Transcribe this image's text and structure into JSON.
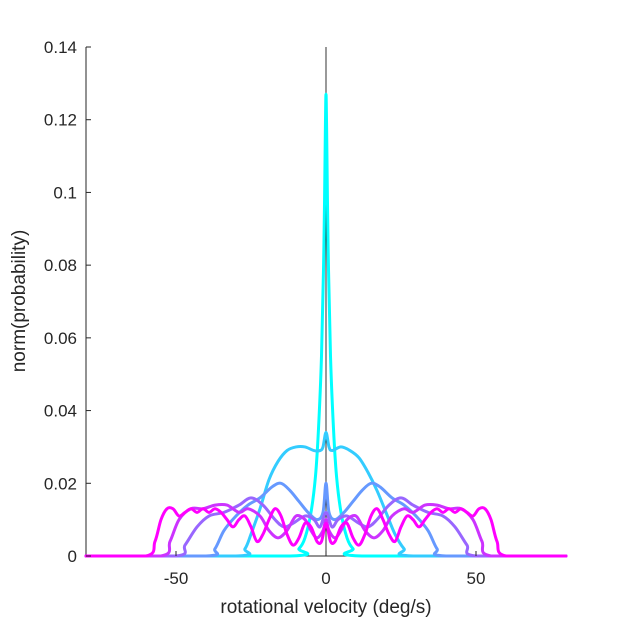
{
  "chart_data": {
    "type": "line",
    "title": "",
    "xlabel": "rotational velocity (deg/s)",
    "ylabel": "norm(probability)",
    "xlim": [
      -80,
      80
    ],
    "ylim": [
      0,
      0.14
    ],
    "xticks": [
      -50,
      0,
      50
    ],
    "xtick_labels": [
      "-50",
      "0",
      "50"
    ],
    "yticks": [
      0,
      0.02,
      0.04,
      0.06,
      0.08,
      0.1,
      0.12,
      0.14
    ],
    "ytick_labels": [
      "0",
      "0.02",
      "0.04",
      "0.06",
      "0.08",
      "0.1",
      "0.12",
      "0.14"
    ],
    "grid": false,
    "legend": "none",
    "zero_line": true,
    "series": [
      {
        "color": "#00ffff",
        "points": [
          [
            -80,
            0
          ],
          [
            -12,
            0
          ],
          [
            -9,
            0.002
          ],
          [
            -7,
            0.005
          ],
          [
            -5,
            0.012
          ],
          [
            -3.5,
            0.022
          ],
          [
            -2.5,
            0.035
          ],
          [
            -1.5,
            0.055
          ],
          [
            -0.7,
            0.085
          ],
          [
            -0.2,
            0.118
          ],
          [
            0,
            0.127
          ],
          [
            0.2,
            0.118
          ],
          [
            0.7,
            0.085
          ],
          [
            1.5,
            0.055
          ],
          [
            2.5,
            0.035
          ],
          [
            3.5,
            0.022
          ],
          [
            5,
            0.012
          ],
          [
            7,
            0.005
          ],
          [
            9,
            0.002
          ],
          [
            12,
            0
          ],
          [
            80,
            0
          ]
        ]
      },
      {
        "color": "#33ccff",
        "points": [
          [
            -80,
            0
          ],
          [
            -30,
            0
          ],
          [
            -27,
            0.002
          ],
          [
            -25,
            0.006
          ],
          [
            -22,
            0.013
          ],
          [
            -19,
            0.021
          ],
          [
            -16,
            0.026
          ],
          [
            -13,
            0.029
          ],
          [
            -10,
            0.03
          ],
          [
            -7,
            0.03
          ],
          [
            -4,
            0.029
          ],
          [
            -2,
            0.029
          ],
          [
            -1,
            0.03
          ],
          [
            0,
            0.034
          ],
          [
            1,
            0.03
          ],
          [
            2,
            0.029
          ],
          [
            5,
            0.03
          ],
          [
            8,
            0.029
          ],
          [
            11,
            0.027
          ],
          [
            14,
            0.023
          ],
          [
            17,
            0.018
          ],
          [
            20,
            0.012
          ],
          [
            23,
            0.006
          ],
          [
            26,
            0.002
          ],
          [
            29,
            0
          ],
          [
            80,
            0
          ]
        ]
      },
      {
        "color": "#6699ff",
        "points": [
          [
            -80,
            0
          ],
          [
            -40,
            0
          ],
          [
            -37,
            0.002
          ],
          [
            -34,
            0.007
          ],
          [
            -30,
            0.011
          ],
          [
            -26,
            0.014
          ],
          [
            -22,
            0.016
          ],
          [
            -18,
            0.019
          ],
          [
            -15,
            0.02
          ],
          [
            -12,
            0.018
          ],
          [
            -9,
            0.015
          ],
          [
            -6,
            0.012
          ],
          [
            -3,
            0.01
          ],
          [
            -1,
            0.012
          ],
          [
            0,
            0.02
          ],
          [
            1,
            0.012
          ],
          [
            3,
            0.01
          ],
          [
            6,
            0.012
          ],
          [
            9,
            0.015
          ],
          [
            12,
            0.018
          ],
          [
            15,
            0.02
          ],
          [
            18,
            0.019
          ],
          [
            22,
            0.016
          ],
          [
            26,
            0.014
          ],
          [
            30,
            0.011
          ],
          [
            34,
            0.007
          ],
          [
            37,
            0.002
          ],
          [
            40,
            0
          ],
          [
            80,
            0
          ]
        ]
      },
      {
        "color": "#9966ff",
        "points": [
          [
            -80,
            0
          ],
          [
            -50,
            0
          ],
          [
            -47,
            0.003
          ],
          [
            -43,
            0.008
          ],
          [
            -39,
            0.011
          ],
          [
            -34,
            0.012
          ],
          [
            -29,
            0.014
          ],
          [
            -25,
            0.016
          ],
          [
            -21,
            0.014
          ],
          [
            -17,
            0.01
          ],
          [
            -14,
            0.008
          ],
          [
            -11,
            0.009
          ],
          [
            -7,
            0.011
          ],
          [
            -4,
            0.01
          ],
          [
            -2,
            0.008
          ],
          [
            0,
            0.012
          ],
          [
            2,
            0.008
          ],
          [
            4,
            0.01
          ],
          [
            7,
            0.011
          ],
          [
            11,
            0.009
          ],
          [
            14,
            0.008
          ],
          [
            17,
            0.01
          ],
          [
            21,
            0.014
          ],
          [
            25,
            0.016
          ],
          [
            29,
            0.014
          ],
          [
            34,
            0.012
          ],
          [
            39,
            0.011
          ],
          [
            43,
            0.008
          ],
          [
            47,
            0.003
          ],
          [
            50,
            0
          ],
          [
            80,
            0
          ]
        ]
      },
      {
        "color": "#cc33ff",
        "points": [
          [
            -80,
            0
          ],
          [
            -55,
            0
          ],
          [
            -52,
            0.004
          ],
          [
            -49,
            0.01
          ],
          [
            -45,
            0.013
          ],
          [
            -41,
            0.013
          ],
          [
            -37,
            0.014
          ],
          [
            -33,
            0.014
          ],
          [
            -29,
            0.012
          ],
          [
            -26,
            0.013
          ],
          [
            -22,
            0.011
          ],
          [
            -19,
            0.007
          ],
          [
            -16,
            0.005
          ],
          [
            -13,
            0.007
          ],
          [
            -10,
            0.011
          ],
          [
            -7,
            0.01
          ],
          [
            -5,
            0.007
          ],
          [
            -3,
            0.005
          ],
          [
            -1,
            0.007
          ],
          [
            0,
            0.01
          ],
          [
            1,
            0.007
          ],
          [
            3,
            0.005
          ],
          [
            5,
            0.007
          ],
          [
            7,
            0.01
          ],
          [
            10,
            0.011
          ],
          [
            13,
            0.007
          ],
          [
            16,
            0.005
          ],
          [
            19,
            0.007
          ],
          [
            22,
            0.011
          ],
          [
            26,
            0.013
          ],
          [
            29,
            0.012
          ],
          [
            33,
            0.014
          ],
          [
            37,
            0.014
          ],
          [
            41,
            0.013
          ],
          [
            45,
            0.013
          ],
          [
            49,
            0.01
          ],
          [
            52,
            0.004
          ],
          [
            55,
            0
          ],
          [
            80,
            0
          ]
        ]
      },
      {
        "color": "#ff00ff",
        "points": [
          [
            -80,
            0
          ],
          [
            -60,
            0
          ],
          [
            -57,
            0.004
          ],
          [
            -55,
            0.01
          ],
          [
            -53,
            0.013
          ],
          [
            -51,
            0.013
          ],
          [
            -49,
            0.011
          ],
          [
            -47,
            0.012
          ],
          [
            -45,
            0.013
          ],
          [
            -43,
            0.012
          ],
          [
            -41,
            0.013
          ],
          [
            -39,
            0.012
          ],
          [
            -37,
            0.013
          ],
          [
            -35,
            0.012
          ],
          [
            -33,
            0.01
          ],
          [
            -31,
            0.008
          ],
          [
            -29,
            0.01
          ],
          [
            -27,
            0.011
          ],
          [
            -25,
            0.008
          ],
          [
            -23,
            0.004
          ],
          [
            -21,
            0.006
          ],
          [
            -19,
            0.01
          ],
          [
            -17,
            0.013
          ],
          [
            -15,
            0.011
          ],
          [
            -13,
            0.006
          ],
          [
            -11,
            0.003
          ],
          [
            -9,
            0.005
          ],
          [
            -7,
            0.009
          ],
          [
            -5,
            0.008
          ],
          [
            -3,
            0.004
          ],
          [
            -1.5,
            0.004
          ],
          [
            0,
            0.009
          ],
          [
            1.5,
            0.004
          ],
          [
            3,
            0.004
          ],
          [
            5,
            0.008
          ],
          [
            7,
            0.009
          ],
          [
            9,
            0.005
          ],
          [
            11,
            0.003
          ],
          [
            13,
            0.006
          ],
          [
            15,
            0.011
          ],
          [
            17,
            0.013
          ],
          [
            19,
            0.01
          ],
          [
            21,
            0.006
          ],
          [
            23,
            0.004
          ],
          [
            25,
            0.008
          ],
          [
            27,
            0.011
          ],
          [
            29,
            0.01
          ],
          [
            31,
            0.008
          ],
          [
            33,
            0.01
          ],
          [
            35,
            0.012
          ],
          [
            37,
            0.013
          ],
          [
            39,
            0.012
          ],
          [
            41,
            0.013
          ],
          [
            43,
            0.012
          ],
          [
            45,
            0.013
          ],
          [
            47,
            0.012
          ],
          [
            49,
            0.011
          ],
          [
            51,
            0.013
          ],
          [
            53,
            0.013
          ],
          [
            55,
            0.01
          ],
          [
            57,
            0.004
          ],
          [
            60,
            0
          ],
          [
            80,
            0
          ]
        ]
      }
    ]
  }
}
